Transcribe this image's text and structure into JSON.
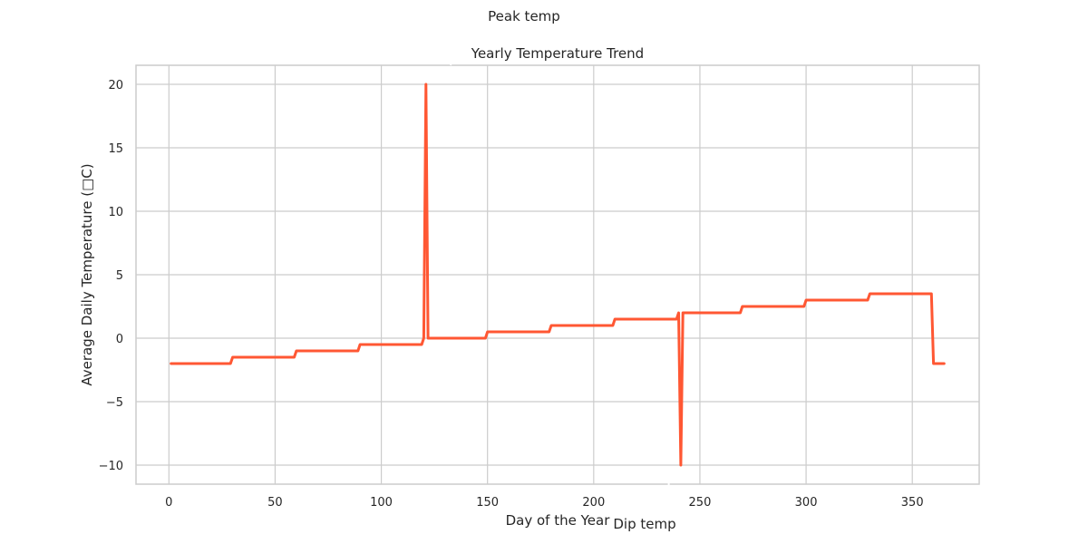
{
  "chart_data": {
    "type": "line",
    "title": "Yearly Temperature Trend",
    "xlabel": "Day of the Year",
    "ylabel": "Average Daily Temperature (□C)",
    "xlim": [
      -15.5,
      381.5
    ],
    "ylim": [
      -11.5,
      21.5
    ],
    "xticks": [
      0,
      50,
      100,
      150,
      200,
      250,
      300,
      350
    ],
    "yticks": [
      -10,
      -5,
      0,
      5,
      10,
      15,
      20
    ],
    "grid": true,
    "line_color": "#ff5733",
    "series": [
      {
        "points": [
          [
            1,
            -2
          ],
          [
            29,
            -2
          ],
          [
            30,
            -1.5
          ],
          [
            59,
            -1.5
          ],
          [
            60,
            -1
          ],
          [
            89,
            -1
          ],
          [
            90,
            -0.5
          ],
          [
            119,
            -0.5
          ],
          [
            120,
            0
          ],
          [
            121,
            20
          ],
          [
            122,
            0
          ],
          [
            149,
            0
          ],
          [
            150,
            0.5
          ],
          [
            179,
            0.5
          ],
          [
            180,
            1
          ],
          [
            209,
            1
          ],
          [
            210,
            1.5
          ],
          [
            239,
            1.5
          ],
          [
            240,
            2
          ],
          [
            241,
            -10
          ],
          [
            242,
            2
          ],
          [
            269,
            2
          ],
          [
            270,
            2.5
          ],
          [
            299,
            2.5
          ],
          [
            300,
            3
          ],
          [
            329,
            3
          ],
          [
            330,
            3.5
          ],
          [
            359,
            3.5
          ],
          [
            360,
            -2
          ],
          [
            365,
            -2
          ]
        ]
      }
    ],
    "annotations": [
      {
        "text": "Peak temp",
        "x": 121,
        "y": 20
      },
      {
        "text": "Dip temp",
        "x": 241,
        "y": -10
      }
    ]
  }
}
